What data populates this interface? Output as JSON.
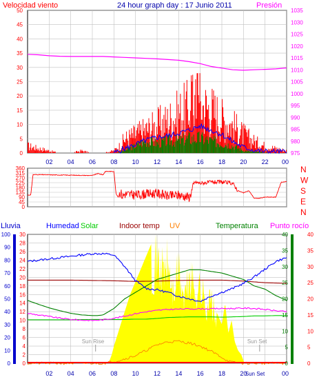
{
  "title": "24 hour graph day : 17 Junio 2011",
  "colors": {
    "wind": "#ff0000",
    "pressure": "#ff00ff",
    "gust_blue": "#0000ff",
    "gust_green": "#008000",
    "rain": "#0000cc",
    "humidity": "#0000ff",
    "solar": "#00cc00",
    "indoor": "#990000",
    "uv": "#ff8000",
    "temp": "#008000",
    "dew": "#ff00ff",
    "sun_fill": "#ffff00",
    "grid": "#c0c0c0",
    "axis_x": "#0000aa"
  },
  "x_tick_labels": [
    "02",
    "04",
    "06",
    "08",
    "10",
    "12",
    "14",
    "16",
    "18",
    "20",
    "22",
    "00"
  ],
  "x_tick_labels_bottom": [
    "02",
    "04",
    "06",
    "08",
    "10",
    "12",
    "14",
    "16",
    "18",
    "20",
    "00"
  ],
  "chart_data": [
    {
      "type": "bar",
      "name": "wind_pressure",
      "left_label": "Velocidad viento",
      "right_label": "Presión",
      "left_ticks": [
        "50",
        "45",
        "40",
        "35",
        "30",
        "25",
        "20",
        "15",
        "10",
        "5",
        "0"
      ],
      "right_ticks": [
        "1035",
        "1030",
        "1025",
        "1020",
        "1015",
        "1010",
        "1005",
        "1000",
        "995",
        "990",
        "985",
        "980",
        "975"
      ],
      "wind_y_range": [
        0,
        50
      ],
      "pressure_y_range": [
        975,
        1035
      ],
      "x_range_hours": [
        0,
        24
      ],
      "pressure": {
        "x": [
          0,
          1,
          2,
          3,
          4,
          5,
          6,
          7,
          8,
          9,
          10,
          11,
          12,
          13,
          14,
          15,
          16,
          17,
          18,
          19,
          20,
          21,
          22,
          23,
          24
        ],
        "y": [
          1016.5,
          1016.3,
          1015.9,
          1015.7,
          1015.6,
          1015.6,
          1015.6,
          1015.6,
          1015.4,
          1015.2,
          1015.0,
          1014.8,
          1014.6,
          1014.3,
          1014.0,
          1013.4,
          1012.6,
          1011.4,
          1010.7,
          1010.0,
          1009.8,
          1010.0,
          1010.2,
          1010.4,
          1010.8
        ]
      },
      "wind_envelope": {
        "x": [
          0,
          1,
          2,
          3,
          4,
          5,
          6,
          7,
          7.5,
          8,
          8.5,
          9,
          10,
          11,
          12,
          13,
          14,
          15,
          16,
          17,
          18,
          19,
          20,
          21,
          22,
          23,
          24
        ],
        "y": [
          3,
          2,
          1,
          0,
          0,
          1,
          0,
          0,
          0.5,
          1,
          3,
          6,
          8,
          10,
          12,
          14,
          17,
          20,
          21,
          19,
          15,
          12,
          8,
          5,
          3,
          2,
          1
        ]
      },
      "gust_avg": {
        "x": [
          8,
          9,
          10,
          11,
          12,
          13,
          14,
          15,
          16,
          17,
          18,
          19,
          20,
          21,
          22,
          23,
          24
        ],
        "y": [
          0,
          1.5,
          3,
          4.5,
          5.5,
          6,
          7,
          8,
          9.5,
          8,
          6.5,
          4,
          2,
          1,
          0.5,
          0.5,
          0.3
        ]
      },
      "gust_green": {
        "x": [
          8,
          9,
          10,
          11,
          12,
          13,
          14,
          15,
          16,
          17,
          18,
          19,
          20,
          21,
          22,
          23,
          24
        ],
        "y": [
          0,
          1,
          3,
          5,
          4,
          5,
          5,
          6,
          6,
          5,
          4,
          3,
          1,
          0.5,
          0.3,
          0.2,
          0
        ]
      }
    },
    {
      "type": "line",
      "name": "wind_direction",
      "left_ticks": [
        "360",
        "315",
        "270",
        "225",
        "180",
        "135",
        "90",
        "45",
        "0"
      ],
      "right_letters": [
        "N",
        "W",
        "S",
        "E",
        "N"
      ],
      "y_range": [
        0,
        360
      ],
      "x": [
        0,
        0.3,
        0.5,
        1,
        2,
        3,
        4,
        5,
        6,
        6.5,
        7,
        7.2,
        7.5,
        8,
        8.2,
        8.4,
        8.6,
        8.8,
        9,
        10,
        11,
        12,
        12.5,
        13,
        14,
        14.5,
        15,
        15.5,
        16,
        17,
        18,
        19,
        19.5,
        20,
        20.5,
        21,
        21.5,
        22,
        23,
        23.5,
        24
      ],
      "y": [
        110,
        110,
        300,
        300,
        298,
        296,
        295,
        293,
        292,
        310,
        298,
        330,
        330,
        330,
        120,
        90,
        140,
        100,
        120,
        110,
        120,
        125,
        115,
        100,
        110,
        100,
        90,
        230,
        220,
        230,
        230,
        220,
        150,
        130,
        150,
        80,
        80,
        90,
        90,
        230,
        235
      ]
    },
    {
      "type": "line",
      "name": "climate",
      "legend": [
        "Lluvia",
        "Humedad",
        "Solar",
        "Indoor temp",
        "UV",
        "Temperatura",
        "Punto rocío"
      ],
      "rain_ticks": [
        "100",
        "90",
        "80",
        "70",
        "60",
        "50",
        "40",
        "30",
        "20",
        "10",
        "0"
      ],
      "humidity_ticks": [
        "30",
        "28",
        "26",
        "24",
        "22",
        "20",
        "18",
        "16",
        "14",
        "12",
        "10",
        "8",
        "6",
        "4",
        "2",
        "0"
      ],
      "temp_ticks": [
        "40",
        "35",
        "30",
        "25",
        "20",
        "15",
        "10",
        "5",
        "0"
      ],
      "dew_ticks": [
        "40",
        "35",
        "30",
        "25",
        "20",
        "15",
        "10",
        "5",
        "0"
      ],
      "sunrise_label": "Sun Rise",
      "sunset_label": "Sun Set",
      "bottom_sunset_label": "Sun Set",
      "humidity": {
        "x": [
          0,
          1,
          2,
          3,
          4,
          5,
          6,
          7,
          8,
          9,
          10,
          11,
          12,
          13,
          14,
          15,
          16,
          17,
          18,
          19,
          20,
          21,
          22,
          23,
          24
        ],
        "y": [
          79,
          80,
          81,
          82,
          83,
          84,
          85,
          85,
          84,
          75,
          64,
          58,
          57,
          55,
          52,
          50,
          48,
          52,
          55,
          58,
          62,
          67,
          73,
          79,
          82
        ]
      },
      "solar": {
        "x": [
          0,
          2,
          4,
          6,
          8,
          9,
          10,
          11,
          12,
          13,
          14,
          15,
          16,
          17,
          18,
          19,
          20,
          21,
          22,
          23,
          24
        ],
        "y": [
          13.5,
          13.5,
          13.5,
          13.6,
          13.6,
          13.6,
          13.7,
          13.7,
          13.9,
          14.2,
          14.3,
          14.4,
          14.4,
          14.4,
          14.3,
          14.4,
          14.5,
          14.7,
          14.7,
          14.8,
          14.8
        ]
      },
      "indoor_temp": {
        "x": [
          0,
          2,
          4,
          6,
          8,
          10,
          12,
          14,
          16,
          18,
          20,
          22,
          24
        ],
        "y": [
          25.8,
          25.8,
          25.8,
          25.7,
          25.6,
          25.4,
          25.5,
          25.7,
          25.8,
          25.8,
          25.5,
          25.0,
          24.8
        ]
      },
      "uv": {
        "x": [
          0,
          7,
          8,
          9,
          10,
          11,
          12,
          13,
          14,
          15,
          16,
          17,
          18,
          18.5,
          19,
          20,
          24
        ],
        "y": [
          0,
          0,
          0.4,
          1.0,
          1.8,
          3.0,
          4.3,
          5.0,
          5.1,
          4.7,
          4.0,
          2.8,
          1.4,
          0.6,
          0.2,
          0,
          0
        ]
      },
      "temperatura": {
        "x": [
          0,
          1,
          2,
          3,
          4,
          5,
          6,
          6.5,
          7,
          8,
          9,
          10,
          11,
          12,
          13,
          14,
          15,
          16,
          17,
          18,
          19,
          20,
          21,
          22,
          23,
          24
        ],
        "y": [
          19.5,
          18.3,
          17.2,
          16.3,
          15.5,
          15.0,
          14.8,
          14.8,
          15.0,
          17.0,
          20.0,
          22.0,
          24.0,
          26.0,
          27.0,
          28.0,
          29.0,
          29.0,
          28.5,
          28.0,
          27.0,
          26.0,
          24.0,
          23.0,
          21.0,
          19.5
        ]
      },
      "punto_rocio": {
        "x": [
          0,
          1,
          2,
          3,
          4,
          5,
          6,
          7,
          8,
          9,
          10,
          11,
          12,
          13,
          14,
          15,
          16,
          17,
          18,
          19,
          20,
          21,
          22,
          23,
          24
        ],
        "y": [
          15.5,
          15.0,
          14.5,
          14.0,
          13.6,
          13.4,
          13.3,
          13.5,
          14.0,
          14.6,
          15.4,
          16.0,
          16.4,
          16.7,
          16.8,
          16.9,
          16.9,
          16.9,
          17.0,
          17.0,
          17.1,
          17.0,
          16.7,
          16.3,
          16.0
        ]
      },
      "solar_fill": {
        "x": [
          7.5,
          7.8,
          8.0,
          8.5,
          9.0,
          9.5,
          10.0,
          10.5,
          11.0,
          11.5,
          12.0,
          12.5,
          13.0,
          13.5,
          14.0,
          14.5,
          15.0,
          15.5,
          16.0,
          16.5,
          17.0,
          17.5,
          18.0,
          18.3,
          18.6,
          18.9,
          19.2,
          19.5,
          19.8,
          20.1
        ],
        "y": [
          0,
          2,
          4,
          8,
          12,
          16,
          19,
          22,
          25,
          28,
          30,
          26,
          28,
          20,
          27,
          18,
          25,
          21,
          22,
          17,
          18,
          12,
          9,
          14,
          7,
          10,
          5,
          3,
          2,
          0
        ]
      }
    }
  ]
}
